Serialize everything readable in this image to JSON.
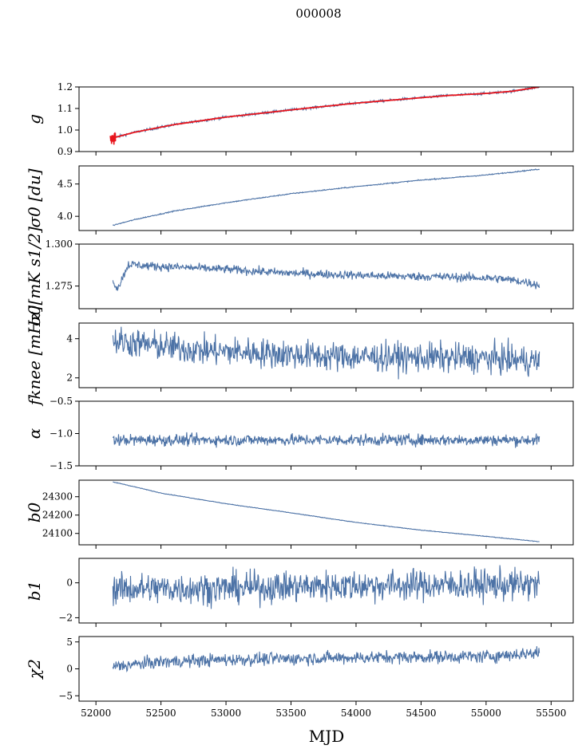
{
  "figure": {
    "title": "000008",
    "xlabel": "MJD"
  },
  "colors": {
    "series": "#4c72a6",
    "fit": "#e8141c"
  },
  "chart_data": [
    {
      "type": "line",
      "ylabel": "g",
      "xlim": [
        51870,
        55670
      ],
      "ylim": [
        0.9,
        1.2
      ],
      "yticks": [
        0.9,
        1.0,
        1.1,
        1.2
      ],
      "ytick_labels": [
        "0.9",
        "1.0",
        "1.1",
        "1.2"
      ],
      "x_range": [
        52110,
        55410
      ],
      "trend": {
        "x": [
          52110,
          52300,
          52600,
          53000,
          53300,
          53600,
          54000,
          54300,
          54700,
          55000,
          55200,
          55410
        ],
        "y": [
          0.96,
          0.99,
          1.025,
          1.06,
          1.08,
          1.1,
          1.125,
          1.14,
          1.16,
          1.17,
          1.18,
          1.2
        ]
      },
      "noise": 0.003,
      "overlay": "fit"
    },
    {
      "type": "line",
      "ylabel": "σ0 [du]",
      "xlim": [
        51870,
        55670
      ],
      "ylim": [
        3.78,
        4.78
      ],
      "yticks": [
        4.0,
        4.5
      ],
      "ytick_labels": [
        "4.0",
        "4.5"
      ],
      "x_range": [
        52130,
        55410
      ],
      "trend": {
        "x": [
          52130,
          52300,
          52600,
          53000,
          53500,
          54000,
          54500,
          55000,
          55410
        ],
        "y": [
          3.86,
          3.95,
          4.08,
          4.21,
          4.35,
          4.46,
          4.56,
          4.64,
          4.73
        ]
      },
      "noise": 0.004
    },
    {
      "type": "line",
      "ylabel": "σ0[mK s1/2]",
      "xlim": [
        51870,
        55670
      ],
      "ylim": [
        1.2615,
        1.3
      ],
      "yticks": [
        1.275,
        1.3
      ],
      "ytick_labels": [
        "1.275",
        "1.300"
      ],
      "x_range": [
        52130,
        55410
      ],
      "trend": {
        "x": [
          52130,
          52170,
          52250,
          52400,
          52700,
          53000,
          53400,
          53800,
          54200,
          54700,
          55100,
          55300,
          55410
        ],
        "y": [
          1.277,
          1.274,
          1.288,
          1.287,
          1.286,
          1.285,
          1.283,
          1.282,
          1.281,
          1.2805,
          1.2795,
          1.2775,
          1.2755
        ]
      },
      "noise": 0.0013
    },
    {
      "type": "line",
      "ylabel": "fknee [mHz]",
      "xlim": [
        51870,
        55670
      ],
      "ylim": [
        1.5,
        4.8
      ],
      "yticks": [
        2,
        4
      ],
      "ytick_labels": [
        "2",
        "4"
      ],
      "x_range": [
        52130,
        55410
      ],
      "trend": {
        "x": [
          52130,
          52400,
          52800,
          53200,
          53800,
          54400,
          55000,
          55410
        ],
        "y": [
          3.9,
          3.7,
          3.4,
          3.3,
          3.1,
          3.05,
          3.0,
          2.85
        ]
      },
      "noise": 0.38
    },
    {
      "type": "line",
      "ylabel": "α",
      "xlim": [
        51870,
        55670
      ],
      "ylim": [
        -1.5,
        -0.5
      ],
      "yticks": [
        -1.5,
        -1.0,
        -0.5
      ],
      "ytick_labels": [
        "−1.5",
        "−1.0",
        "−0.5"
      ],
      "x_range": [
        52130,
        55410
      ],
      "trend": {
        "x": [
          52130,
          55410
        ],
        "y": [
          -1.1,
          -1.1
        ]
      },
      "noise": 0.045
    },
    {
      "type": "line",
      "ylabel": "b0",
      "xlim": [
        51870,
        55670
      ],
      "ylim": [
        24038,
        24390
      ],
      "yticks": [
        24100,
        24200,
        24300
      ],
      "ytick_labels": [
        "24100",
        "24200",
        "24300"
      ],
      "x_range": [
        52130,
        55410
      ],
      "trend": {
        "x": [
          52130,
          52200,
          52500,
          53000,
          53500,
          54000,
          54500,
          55000,
          55410
        ],
        "y": [
          24380,
          24370,
          24320,
          24262,
          24212,
          24160,
          24118,
          24084,
          24055
        ]
      },
      "noise": 0.8
    },
    {
      "type": "line",
      "ylabel": "b1",
      "xlim": [
        51870,
        55670
      ],
      "ylim": [
        -2.3,
        1.4
      ],
      "yticks": [
        -2,
        0
      ],
      "ytick_labels": [
        "−2",
        "0"
      ],
      "x_range": [
        52130,
        55410
      ],
      "trend": {
        "x": [
          52130,
          53000,
          54000,
          55410
        ],
        "y": [
          -0.35,
          -0.3,
          -0.15,
          -0.1
        ]
      },
      "noise": 0.45
    },
    {
      "type": "line",
      "ylabel": "χ2",
      "xlim": [
        51870,
        55670
      ],
      "ylim": [
        -6,
        6
      ],
      "yticks": [
        -5,
        0,
        5
      ],
      "ytick_labels": [
        "−5",
        "0",
        "5"
      ],
      "x_range": [
        52130,
        55410
      ],
      "trend": {
        "x": [
          52130,
          52500,
          53000,
          53500,
          54000,
          54500,
          55000,
          55410
        ],
        "y": [
          0.4,
          1.3,
          1.7,
          1.9,
          2.1,
          2.2,
          2.3,
          3.0
        ]
      },
      "noise": 0.6
    }
  ],
  "xticks": [
    52000,
    52500,
    53000,
    53500,
    54000,
    54500,
    55000,
    55500
  ],
  "xtick_labels": [
    "52000",
    "52500",
    "53000",
    "53500",
    "54000",
    "54500",
    "55000",
    "55500"
  ]
}
